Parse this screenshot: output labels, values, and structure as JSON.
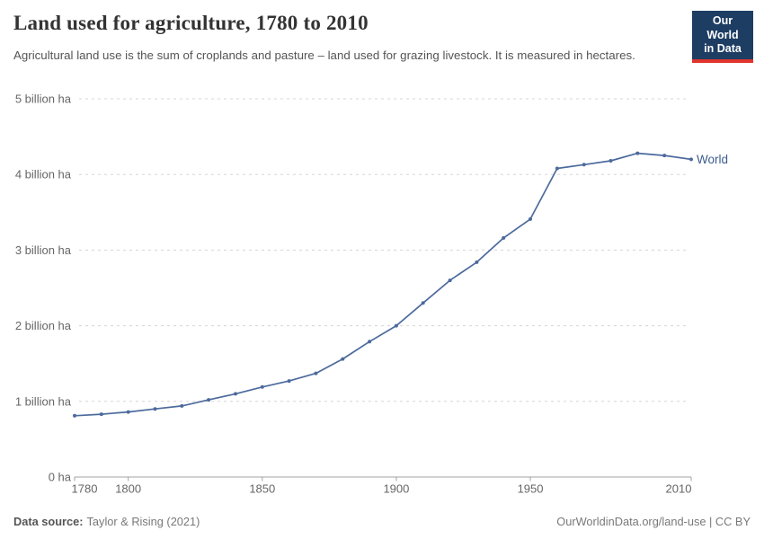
{
  "header": {
    "title": "Land used for agriculture, 1780 to 2010",
    "subtitle": "Agricultural land use is the sum of croplands and pasture – land used for grazing livestock. It is measured in hectares."
  },
  "logo": {
    "line1": "Our World",
    "line2": "in Data",
    "background_color": "#1d3d63",
    "stripe_color": "#e0342c"
  },
  "chart_data": {
    "type": "line",
    "title": "Land used for agriculture, 1780 to 2010",
    "xlabel": "",
    "ylabel": "",
    "unit": "billion ha",
    "xlim": [
      1780,
      2010
    ],
    "ylim": [
      0,
      5
    ],
    "grid": "horizontal-dashed",
    "legend": "end-of-line-label",
    "x_ticks": [
      1780,
      1800,
      1850,
      1900,
      1950,
      2010
    ],
    "y_ticks": [
      {
        "value": 0,
        "label": "0 ha"
      },
      {
        "value": 1,
        "label": "1 billion ha"
      },
      {
        "value": 2,
        "label": "2 billion ha"
      },
      {
        "value": 3,
        "label": "3 billion ha"
      },
      {
        "value": 4,
        "label": "4 billion ha"
      },
      {
        "value": 5,
        "label": "5 billion ha"
      }
    ],
    "x": [
      1780,
      1790,
      1800,
      1810,
      1820,
      1830,
      1840,
      1850,
      1860,
      1870,
      1880,
      1890,
      1900,
      1910,
      1920,
      1930,
      1940,
      1950,
      1960,
      1970,
      1980,
      1990,
      2000,
      2010
    ],
    "series": [
      {
        "name": "World",
        "color": "#4c6a9c",
        "label_color": "#3d5c8e",
        "values": [
          0.81,
          0.83,
          0.86,
          0.9,
          0.94,
          1.02,
          1.1,
          1.19,
          1.27,
          1.37,
          1.56,
          1.79,
          2.0,
          2.3,
          2.6,
          2.84,
          3.16,
          3.41,
          4.08,
          4.13,
          4.18,
          4.28,
          4.25,
          4.2
        ]
      }
    ]
  },
  "footer": {
    "datasource_label": "Data source:",
    "datasource_value": "Taylor & Rising (2021)",
    "credit": "OurWorldinData.org/land-use | CC BY"
  }
}
